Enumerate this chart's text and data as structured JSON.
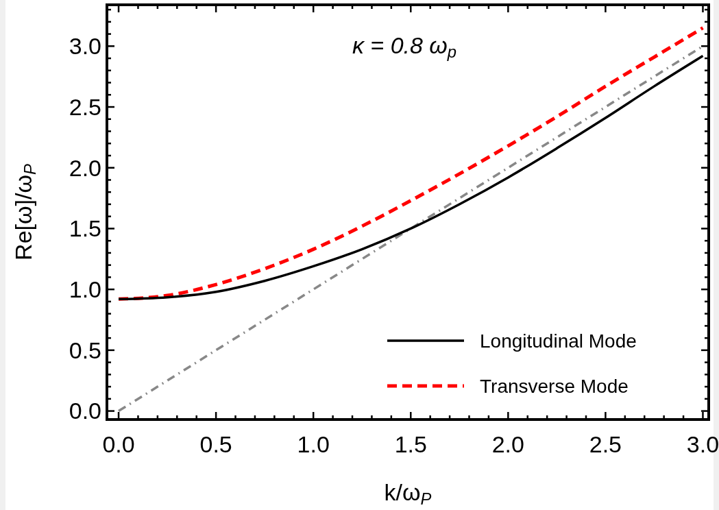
{
  "chart_data": {
    "type": "line",
    "xlabel": "k/ω$_{P}$",
    "ylabel": "Re[ω]/ω$_{P}$",
    "annotations": [
      {
        "text": "κ = 0.8 ω$_{p}$"
      }
    ],
    "xlim": [
      -0.06,
      3.03
    ],
    "ylim": [
      -0.07,
      3.34
    ],
    "xticks": [
      {
        "value": 0,
        "label": "0.0"
      },
      {
        "value": 0.1,
        "label": null
      },
      {
        "value": 0.2,
        "label": null
      },
      {
        "value": 0.3,
        "label": null
      },
      {
        "value": 0.4,
        "label": null
      },
      0.5,
      {
        "value": 0.6,
        "label": null
      },
      {
        "value": 0.7,
        "label": null
      },
      {
        "value": 0.8,
        "label": null
      },
      {
        "value": 0.9,
        "label": null
      },
      {
        "value": 1,
        "label": "1.0"
      },
      {
        "value": 1.1,
        "label": null
      },
      {
        "value": 1.2,
        "label": null
      },
      {
        "value": 1.3,
        "label": null
      },
      {
        "value": 1.4,
        "label": null
      },
      1.5,
      {
        "value": 1.6,
        "label": null
      },
      {
        "value": 1.7,
        "label": null
      },
      {
        "value": 1.8,
        "label": null
      },
      {
        "value": 1.9,
        "label": null
      },
      {
        "value": 2,
        "label": "2.0"
      },
      {
        "value": 2.1,
        "label": null
      },
      {
        "value": 2.2,
        "label": null
      },
      {
        "value": 2.3,
        "label": null
      },
      {
        "value": 2.4,
        "label": null
      },
      2.5,
      {
        "value": 2.6,
        "label": null
      },
      {
        "value": 2.7,
        "label": null
      },
      {
        "value": 2.8,
        "label": null
      },
      {
        "value": 2.9,
        "label": null
      },
      {
        "value": 3,
        "label": "3.0"
      }
    ],
    "yticks": [
      {
        "value": 0,
        "label": "0.0"
      },
      {
        "value": 0.1,
        "label": null
      },
      {
        "value": 0.2,
        "label": null
      },
      {
        "value": 0.3,
        "label": null
      },
      {
        "value": 0.4,
        "label": null
      },
      0.5,
      {
        "value": 0.6,
        "label": null
      },
      {
        "value": 0.7,
        "label": null
      },
      {
        "value": 0.8,
        "label": null
      },
      {
        "value": 0.9,
        "label": null
      },
      {
        "value": 1,
        "label": "1.0"
      },
      {
        "value": 1.1,
        "label": null
      },
      {
        "value": 1.2,
        "label": null
      },
      {
        "value": 1.3,
        "label": null
      },
      {
        "value": 1.4,
        "label": null
      },
      1.5,
      {
        "value": 1.6,
        "label": null
      },
      {
        "value": 1.7,
        "label": null
      },
      {
        "value": 1.8,
        "label": null
      },
      {
        "value": 1.9,
        "label": null
      },
      {
        "value": 2,
        "label": "2.0"
      },
      {
        "value": 2.1,
        "label": null
      },
      {
        "value": 2.2,
        "label": null
      },
      {
        "value": 2.3,
        "label": null
      },
      {
        "value": 2.4,
        "label": null
      },
      2.5,
      {
        "value": 2.6,
        "label": null
      },
      {
        "value": 2.7,
        "label": null
      },
      {
        "value": 2.8,
        "label": null
      },
      {
        "value": 2.9,
        "label": null
      },
      {
        "value": 3,
        "label": "3.0"
      },
      {
        "value": 3.1,
        "label": null
      },
      {
        "value": 3.2,
        "label": null
      },
      {
        "value": 3.3,
        "label": null
      }
    ],
    "grid": false,
    "legend": "bottom right",
    "marker": "none",
    "x": [
      0,
      0.25,
      0.5,
      0.75,
      1,
      1.25,
      1.5,
      1.75,
      2,
      2.25,
      2.5,
      2.75,
      3
    ],
    "series": [
      {
        "name": "Longitudinal Mode",
        "color": "#000000",
        "line_style": "solid",
        "values": [
          0.92,
          0.935,
          0.98,
          1.07,
          1.19,
          1.33,
          1.5,
          1.7,
          1.92,
          2.16,
          2.41,
          2.67,
          2.92
        ]
      },
      {
        "name": "Transverse Mode",
        "color": "#ff0000",
        "line_style": "dashed",
        "values": [
          0.92,
          0.95,
          1.04,
          1.17,
          1.33,
          1.52,
          1.73,
          1.95,
          2.18,
          2.42,
          2.67,
          2.91,
          3.15
        ]
      },
      {
        "color": "#888888",
        "line_style": "dashdot",
        "x": [
          0,
          3
        ],
        "values": [
          0,
          3
        ]
      }
    ]
  }
}
